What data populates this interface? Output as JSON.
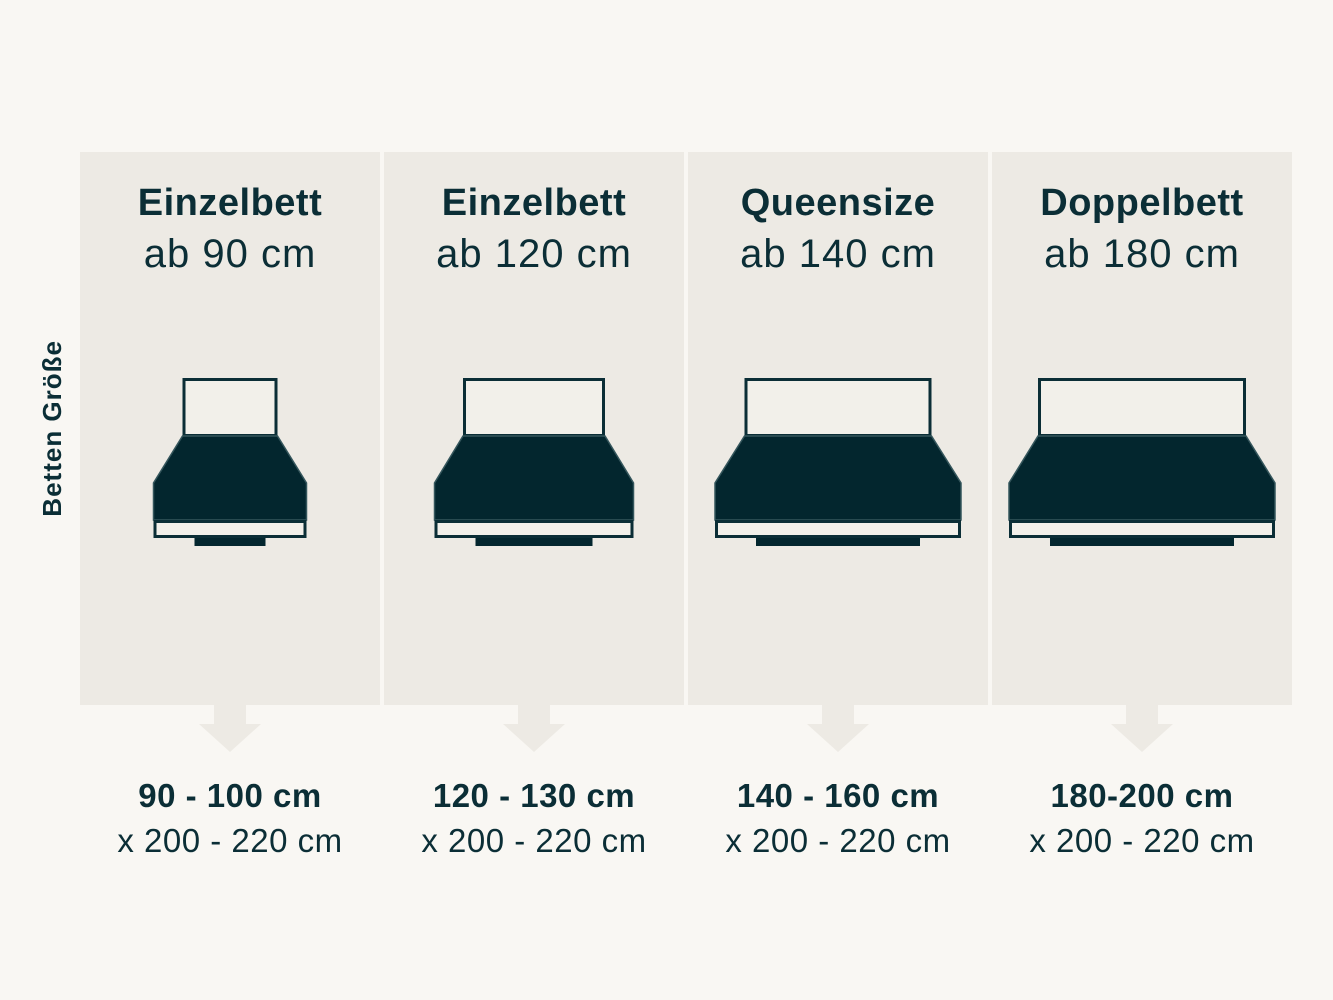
{
  "page": {
    "background": "#f9f7f3",
    "panel_color": "#edeae4",
    "panel_light": "#f2f0ea",
    "accent_dark": "#0b2e36",
    "bed_dark": "#03262e"
  },
  "sidebar_label": "Betten Größe",
  "columns": [
    {
      "title": "Einzelbett",
      "subtitle": "ab 90 cm",
      "width_range": "90 - 100 cm",
      "length_range": "x 200 - 220 cm"
    },
    {
      "title": "Einzelbett",
      "subtitle": "ab 120 cm",
      "width_range": "120 - 130 cm",
      "length_range": "x 200 - 220 cm"
    },
    {
      "title": "Queensize",
      "subtitle": "ab 140 cm",
      "width_range": "140 - 160 cm",
      "length_range": "x 200 - 220 cm"
    },
    {
      "title": "Doppelbett",
      "subtitle": "ab 180 cm",
      "width_range": "180-200 cm",
      "length_range": "x 200 - 220 cm"
    }
  ]
}
